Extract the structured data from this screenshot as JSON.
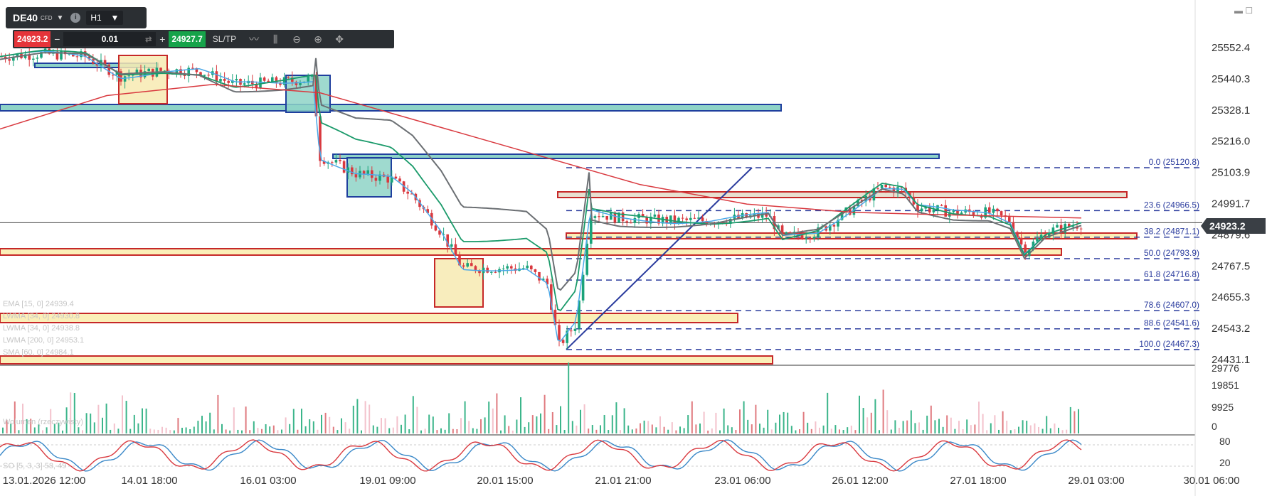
{
  "toolbar": {
    "symbol": "DE40",
    "symbol_badge": "CFD",
    "timeframe": "H1",
    "sell_price": "24923.2",
    "quantity": "0.01",
    "buy_price": "24927.7",
    "sltp_label": "SL/TP",
    "minus": "−",
    "plus": "+"
  },
  "icons": [
    "chevron-down-icon",
    "info-icon",
    "line-chart-icon",
    "candlestick-icon",
    "zoom-out-icon",
    "zoom-in-icon",
    "pan-icon",
    "minimize-icon",
    "swap-icon"
  ],
  "colors": {
    "bull": "#1aa37a",
    "bear": "#d9393f",
    "ema15": "#4aa8e8",
    "lwma34a": "#1a9a6a",
    "lwma34b": "#6b6f73",
    "lwma200": "#d9393f",
    "fib": "#2b3c9e",
    "zone_fill": "#fbefb8",
    "zone_border": "#c62828",
    "box_teal": "#8ed3c7",
    "box_yellow": "#f7eab2",
    "current_price_bg": "#3a3f45"
  },
  "current_price": "24923.2",
  "price_axis": [
    "25552.4",
    "25440.3",
    "25328.1",
    "25216.0",
    "25103.9",
    "24991.7",
    "24879.6",
    "24767.5",
    "24655.3",
    "24543.2",
    "24431.1"
  ],
  "volume_axis": [
    "29776",
    "19851",
    "9925",
    "0"
  ],
  "stoch_axis": [
    "80",
    "20"
  ],
  "time_axis": [
    "13.01.2026 12:00",
    "14.01 18:00",
    "16.01 03:00",
    "19.01 09:00",
    "20.01 15:00",
    "21.01 21:00",
    "23.01 06:00",
    "26.01 12:00",
    "27.01 18:00",
    "29.01 03:00",
    "30.01 06:00"
  ],
  "fib_levels": [
    {
      "label": "0.0 (25120.8)",
      "price": 25120.8
    },
    {
      "label": "23.6 (24966.5)",
      "price": 24966.5
    },
    {
      "label": "38.2 (24871.1)",
      "price": 24871.1
    },
    {
      "label": "50.0 (24793.9)",
      "price": 24793.9
    },
    {
      "label": "61.8 (24716.8)",
      "price": 24716.8
    },
    {
      "label": "78.6 (24607.0)",
      "price": 24607.0
    },
    {
      "label": "88.6 (24541.6)",
      "price": 24541.6
    },
    {
      "label": "100.0 (24467.3)",
      "price": 24467.3
    }
  ],
  "legends": {
    "ema": "EMA [15, 0] 24939.4",
    "lwma34a": "LWMA [34, 0] 24930.8",
    "lwma34b": "LWMA [34, 0] 24938.8",
    "lwma200": "LWMA [200, 0] 24953.1",
    "sma": "SMA [60, 0] 24984.1",
    "volume": "Wolumen (rzeczywisty)",
    "stoch": "SO [5, 3, 3] 58, 49"
  }
}
